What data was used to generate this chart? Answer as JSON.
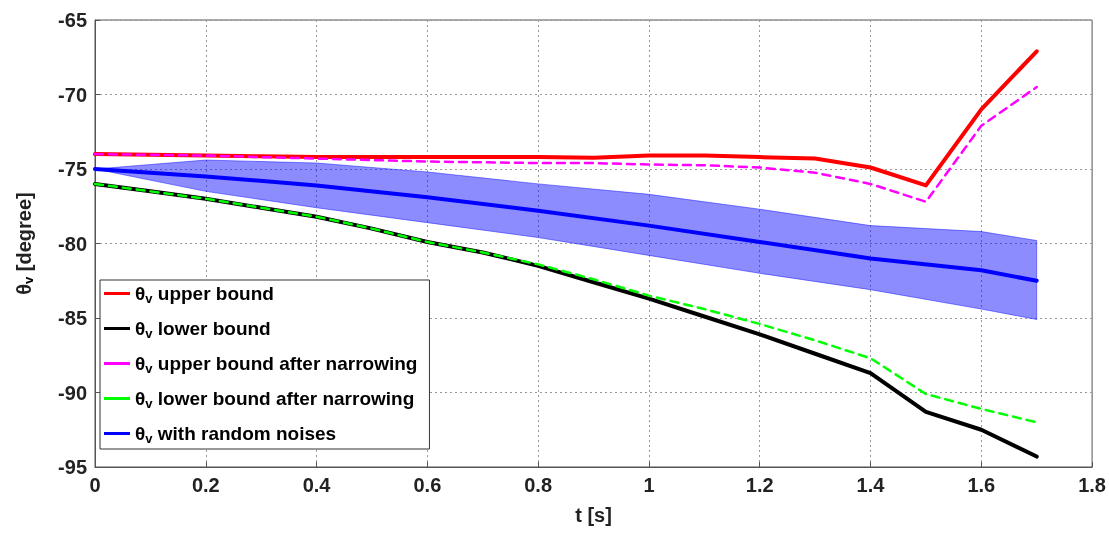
{
  "chart_data": {
    "type": "line",
    "xlabel": "t [s]",
    "ylabel": "θ$_{v}$ [degree]",
    "x": [
      0,
      0.1,
      0.2,
      0.3,
      0.4,
      0.5,
      0.6,
      0.7,
      0.8,
      0.9,
      1.0,
      1.1,
      1.2,
      1.3,
      1.4,
      1.5,
      1.6,
      1.7
    ],
    "xlim": [
      0,
      1.8
    ],
    "xticks": [
      0,
      0.2,
      0.4,
      0.6,
      0.8,
      1,
      1.2,
      1.4,
      1.6,
      1.8
    ],
    "ylim": [
      -95,
      -65
    ],
    "yticks": [
      -95,
      -90,
      -85,
      -80,
      -75,
      -70,
      -65
    ],
    "grid": true,
    "legend": "bottom left",
    "marker": "none",
    "series": [
      {
        "name": "θ$_{v}$ upper bound",
        "color": "#ff0000",
        "line_style": "solid",
        "values": [
          -74,
          -74.05,
          -74.1,
          -74.15,
          -74.2,
          -74.2,
          -74.2,
          -74.2,
          -74.2,
          -74.25,
          -74.1,
          -74.1,
          -74.2,
          -74.3,
          -74.9,
          -76.1,
          -71,
          -67.1
        ]
      },
      {
        "name": "θ$_{v}$ lower bound",
        "color": "#000000",
        "line_style": "solid",
        "values": [
          -76,
          -76.5,
          -77,
          -77.6,
          -78.2,
          -79,
          -79.9,
          -80.6,
          -81.5,
          -82.6,
          -83.7,
          -84.9,
          -86.1,
          -87.4,
          -88.7,
          -91.3,
          -92.5,
          -94.3
        ]
      },
      {
        "name": "θ$_{v}$ upper bound after narrowing",
        "color": "#ff00ff",
        "line_style": "dashed",
        "values": [
          -74,
          -74.05,
          -74.1,
          -74.2,
          -74.3,
          -74.4,
          -74.5,
          -74.55,
          -74.6,
          -74.6,
          -74.7,
          -74.75,
          -74.9,
          -75.25,
          -76,
          -77.2,
          -72.1,
          -69.5
        ]
      },
      {
        "name": "θ$_{v}$ lower bound after narrowing",
        "color": "#00ff00",
        "line_style": "dashed",
        "values": [
          -76,
          -76.5,
          -77,
          -77.6,
          -78.2,
          -79,
          -79.9,
          -80.6,
          -81.4,
          -82.4,
          -83.5,
          -84.4,
          -85.4,
          -86.5,
          -87.7,
          -90.1,
          -91.1,
          -92
        ]
      },
      {
        "name": "θ$_{v}$ with random noises",
        "color": "#0000ff",
        "line_style": "solid",
        "x": [
          0,
          0.2,
          0.4,
          0.6,
          0.8,
          1.0,
          1.2,
          1.4,
          1.6,
          1.7
        ],
        "values": [
          -75,
          -75.5,
          -76.1,
          -76.9,
          -77.8,
          -78.8,
          -79.9,
          -81,
          -81.8,
          -82.5
        ],
        "lower": [
          -75,
          -76.5,
          -77.6,
          -78.6,
          -79.6,
          -80.8,
          -82,
          -83.1,
          -84.4,
          -85.1
        ],
        "upper": [
          -75,
          -74.4,
          -74.6,
          -75.2,
          -76,
          -76.7,
          -77.7,
          -78.8,
          -79.2,
          -79.8
        ]
      }
    ]
  }
}
